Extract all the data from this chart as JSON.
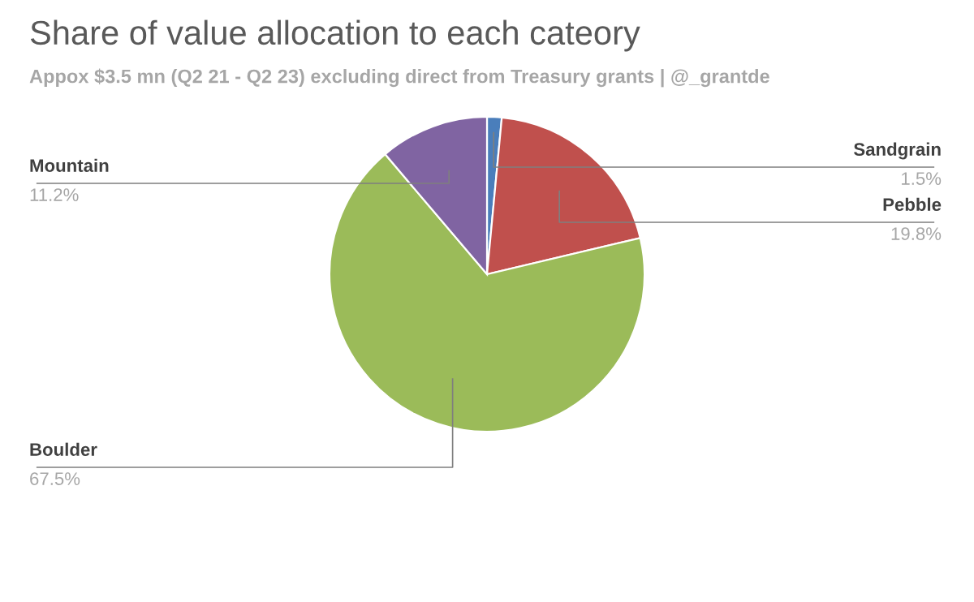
{
  "chart_data": {
    "type": "pie",
    "title": "Share of value allocation to each cateory",
    "subtitle": "Appox $3.5 mn (Q2 21 - Q2 23) excluding direct from Treasury grants | @_grantde",
    "categories": [
      "Sandgrain",
      "Pebble",
      "Boulder",
      "Mountain"
    ],
    "values": [
      1.5,
      19.8,
      67.5,
      11.2
    ],
    "colors": [
      "#4a7ebb",
      "#c0504d",
      "#9bbb59",
      "#8064a2"
    ],
    "value_labels": [
      "1.5%",
      "19.8%",
      "67.5%",
      "11.2%"
    ],
    "legend": false
  }
}
